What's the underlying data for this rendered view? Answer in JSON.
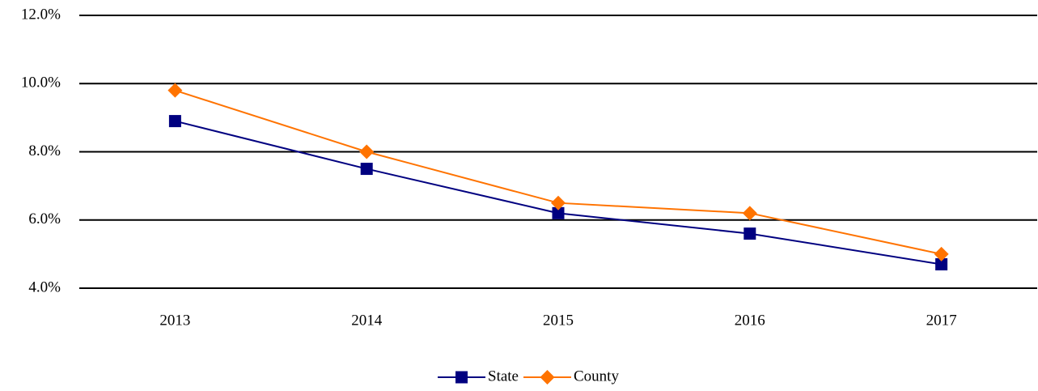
{
  "chart_data": {
    "type": "line",
    "categories": [
      "2013",
      "2014",
      "2015",
      "2016",
      "2017"
    ],
    "series": [
      {
        "name": "State",
        "color": "#000080",
        "marker": "square",
        "values": [
          8.9,
          7.5,
          6.2,
          5.6,
          4.7
        ]
      },
      {
        "name": "County",
        "color": "#ff7300",
        "marker": "diamond",
        "values": [
          9.8,
          8.0,
          6.5,
          6.2,
          5.0
        ]
      }
    ],
    "ylim": [
      4,
      12
    ],
    "yticks": [
      {
        "value": 4,
        "label": "4.0%"
      },
      {
        "value": 6,
        "label": "6.0%"
      },
      {
        "value": 8,
        "label": "8.0%"
      },
      {
        "value": 10,
        "label": "10.0%"
      },
      {
        "value": 12,
        "label": "12.0%"
      }
    ],
    "grid": true,
    "legend": "bottom"
  }
}
